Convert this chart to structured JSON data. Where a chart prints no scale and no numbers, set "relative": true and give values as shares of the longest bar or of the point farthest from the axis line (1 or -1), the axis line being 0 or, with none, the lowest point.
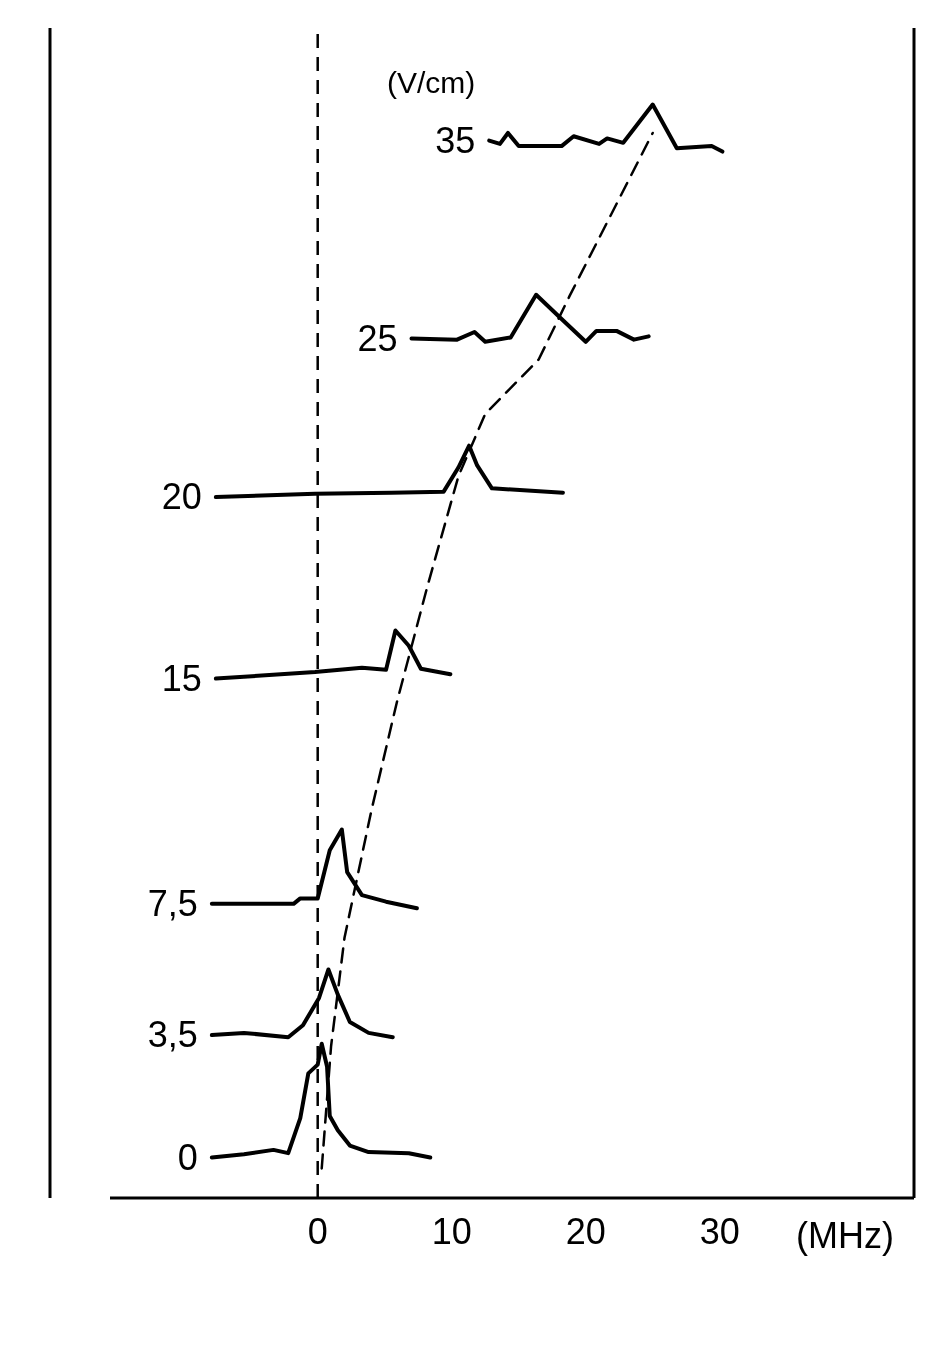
{
  "chart_data": {
    "type": "line",
    "relative": true,
    "xlabel": "(MHz)",
    "legend_title": "(V/cm)",
    "xlim": [
      -15.5,
      44.5
    ],
    "xticks": [
      0,
      10,
      20,
      30
    ],
    "line_style": "solid",
    "marker": "none",
    "ref_lines": [
      {
        "axis": "x",
        "value": 0,
        "color": "#000000",
        "line_style": "dashed"
      }
    ],
    "series": [
      {
        "name": "0",
        "color": "#000000",
        "x": [
          -7.9,
          -5.5,
          -3.3,
          -2.2,
          -1.3,
          -0.7,
          0,
          0.3,
          0.7,
          0.9,
          1.5,
          2.4,
          3.8,
          6.8,
          8.4
        ],
        "values": [
          0.037,
          0.04,
          0.044,
          0.041,
          0.073,
          0.114,
          0.122,
          0.141,
          0.12,
          0.075,
          0.062,
          0.048,
          0.042,
          0.041,
          0.037
        ]
      },
      {
        "name": "3,5",
        "color": "#000000",
        "x": [
          -7.9,
          -5.5,
          -2.2,
          -1.1,
          0.1,
          0.8,
          1.5,
          2.4,
          3.8,
          5.6
        ],
        "values": [
          0.149,
          0.151,
          0.147,
          0.158,
          0.183,
          0.209,
          0.186,
          0.161,
          0.151,
          0.147
        ]
      },
      {
        "name": "7,5",
        "color": "#000000",
        "x": [
          -7.9,
          -1.8,
          -1.3,
          0,
          0.9,
          1.8,
          2.2,
          3.3,
          5.1,
          7.4
        ],
        "values": [
          0.269,
          0.269,
          0.274,
          0.274,
          0.318,
          0.337,
          0.298,
          0.277,
          0.271,
          0.265
        ]
      },
      {
        "name": "15",
        "color": "#000000",
        "x": [
          -7.6,
          -0.2,
          3.3,
          5.1,
          5.8,
          6.8,
          7.7,
          9.9
        ],
        "values": [
          0.475,
          0.481,
          0.485,
          0.483,
          0.519,
          0.505,
          0.484,
          0.479
        ]
      },
      {
        "name": "20",
        "color": "#000000",
        "x": [
          -7.6,
          -0.2,
          5.5,
          9.4,
          10.5,
          11.3,
          11.9,
          13.0,
          18.3
        ],
        "values": [
          0.641,
          0.644,
          0.645,
          0.646,
          0.668,
          0.688,
          0.67,
          0.649,
          0.645
        ]
      },
      {
        "name": "25",
        "color": "#000000",
        "x": [
          7.0,
          10.4,
          11.7,
          12.5,
          14.4,
          16.3,
          18.1,
          20.0,
          20.8,
          22.3,
          23.6,
          24.7
        ],
        "values": [
          0.786,
          0.785,
          0.792,
          0.783,
          0.787,
          0.826,
          0.805,
          0.783,
          0.793,
          0.793,
          0.785,
          0.788
        ]
      },
      {
        "name": "35",
        "color": "#000000",
        "x": [
          12.8,
          13.6,
          14.2,
          15.0,
          18.2,
          19.1,
          21.0,
          21.6,
          22.8,
          25.0,
          26.8,
          29.4,
          30.2
        ],
        "values": [
          0.967,
          0.964,
          0.974,
          0.962,
          0.962,
          0.971,
          0.964,
          0.969,
          0.965,
          1.0,
          0.96,
          0.962,
          0.957
        ]
      },
      {
        "type": "line",
        "color": "#000000",
        "line_style": "dashed",
        "x": [
          0.3,
          1.0,
          2.0,
          4.0,
          5.9,
          8.2,
          10.5,
          12.5,
          16.5,
          18.8,
          25.0
        ],
        "values": [
          0.027,
          0.139,
          0.238,
          0.354,
          0.453,
          0.56,
          0.66,
          0.717,
          0.767,
          0.825,
          0.974
        ]
      }
    ]
  }
}
